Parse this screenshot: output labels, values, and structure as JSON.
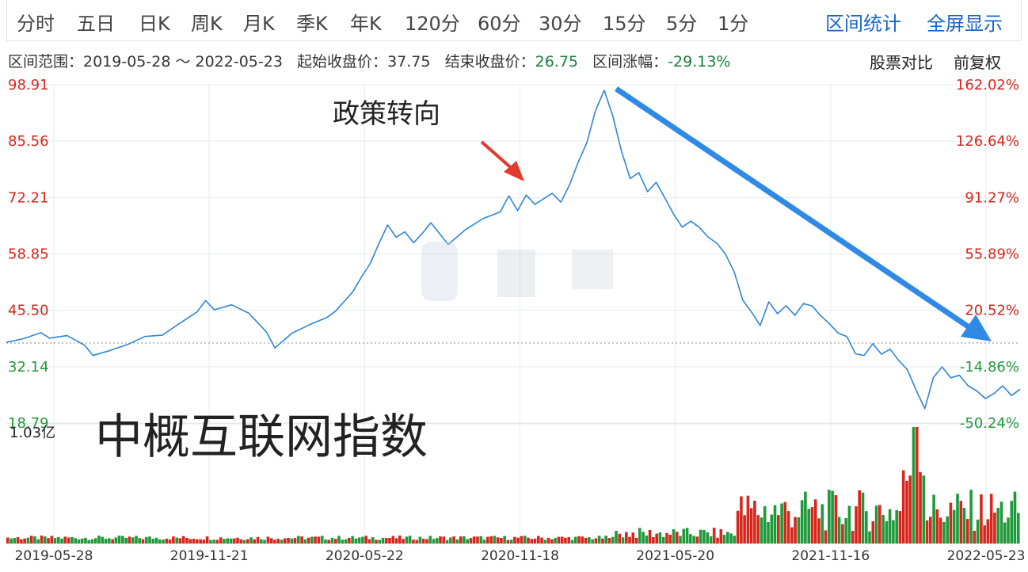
{
  "tabs": {
    "items": [
      "分时",
      "五日",
      "日K",
      "周K",
      "月K",
      "季K",
      "年K",
      "120分",
      "60分",
      "30分",
      "15分",
      "5分",
      "1分"
    ],
    "range_stats": "区间统计",
    "fullscreen": "全屏显示"
  },
  "info": {
    "range_label": "区间范围：2019-05-28 ～ 2022-05-23",
    "start_label": "起始收盘价：",
    "start_value": "37.75",
    "end_label": "结束收盘价：",
    "end_value": "26.75",
    "change_label": "区间涨幅：",
    "change_value": "-29.13%",
    "compare": "股票对比",
    "adjust": "前复权"
  },
  "annotation": "政策转向",
  "watermark_title": "中概互联网指数",
  "volume_label": "1.03亿",
  "colors": {
    "line": "#2f86d6",
    "up": "#d7261b",
    "down": "#1f9a3a",
    "arrow_blue": "#2f8ae6",
    "arrow_red": "#e43a2c"
  },
  "chart_data": {
    "type": "line",
    "y_left_ticks": [
      "98.91",
      "85.56",
      "72.21",
      "58.85",
      "45.50",
      "32.14",
      "18.79"
    ],
    "y_right_ticks": [
      "162.02%",
      "126.64%",
      "91.27%",
      "55.89%",
      "20.52%",
      "-14.86%",
      "-50.24%"
    ],
    "x_ticks": [
      "2019-05-28",
      "2019-11-21",
      "2020-05-22",
      "2020-11-18",
      "2021-05-20",
      "2021-11-16",
      "2022-05-23"
    ],
    "ylim": [
      18.79,
      98.91
    ],
    "baseline": 37.75,
    "series": [
      {
        "points": [
          [
            0,
            37.9
          ],
          [
            2,
            38.8
          ],
          [
            4,
            40.2
          ],
          [
            5,
            38.9
          ],
          [
            7,
            39.5
          ],
          [
            9,
            37.3
          ],
          [
            10,
            34.8
          ],
          [
            12,
            36.0
          ],
          [
            14,
            37.4
          ],
          [
            16,
            39.3
          ],
          [
            18,
            39.6
          ],
          [
            20,
            42.4
          ],
          [
            22,
            45.1
          ],
          [
            23,
            47.8
          ],
          [
            24,
            45.6
          ],
          [
            26,
            46.8
          ],
          [
            28,
            44.8
          ],
          [
            30,
            40.4
          ],
          [
            31,
            36.6
          ],
          [
            33,
            40.1
          ],
          [
            35,
            42.1
          ],
          [
            37,
            43.8
          ],
          [
            38,
            45.3
          ],
          [
            40,
            49.9
          ],
          [
            41,
            53.4
          ],
          [
            42,
            56.6
          ],
          [
            43,
            61.3
          ],
          [
            44,
            65.7
          ],
          [
            45,
            62.8
          ],
          [
            46,
            64.1
          ],
          [
            47,
            61.5
          ],
          [
            48,
            63.7
          ],
          [
            49,
            66.2
          ],
          [
            51,
            61.1
          ],
          [
            53,
            64.6
          ],
          [
            55,
            67.2
          ],
          [
            57,
            68.8
          ],
          [
            58,
            72.6
          ],
          [
            59,
            69.1
          ],
          [
            60,
            72.8
          ],
          [
            61,
            70.6
          ],
          [
            63,
            73.2
          ],
          [
            64,
            71.1
          ],
          [
            65,
            75.2
          ],
          [
            66,
            80.6
          ],
          [
            67,
            85.2
          ],
          [
            68,
            92.8
          ],
          [
            69,
            97.6
          ],
          [
            70,
            91.5
          ],
          [
            71,
            83.1
          ],
          [
            72,
            76.7
          ],
          [
            73,
            78.1
          ],
          [
            74,
            73.6
          ],
          [
            75,
            75.8
          ],
          [
            76,
            72.1
          ],
          [
            77,
            68.3
          ],
          [
            78,
            65.2
          ],
          [
            79,
            66.6
          ],
          [
            80,
            65.1
          ],
          [
            81,
            62.8
          ],
          [
            82,
            61.4
          ],
          [
            83,
            58.8
          ],
          [
            84,
            54.6
          ],
          [
            85,
            47.9
          ],
          [
            86,
            45.1
          ],
          [
            87,
            41.9
          ],
          [
            88,
            47.5
          ],
          [
            89,
            44.7
          ],
          [
            90,
            46.6
          ],
          [
            91,
            44.3
          ],
          [
            92,
            47.1
          ],
          [
            93,
            46.5
          ],
          [
            94,
            44.2
          ],
          [
            95,
            42.3
          ],
          [
            96,
            40.1
          ],
          [
            97,
            39.3
          ],
          [
            98,
            35.2
          ],
          [
            99,
            34.8
          ],
          [
            100,
            37.6
          ],
          [
            101,
            35.1
          ],
          [
            102,
            36.3
          ],
          [
            103,
            33.6
          ],
          [
            104,
            31.4
          ],
          [
            105,
            26.6
          ],
          [
            106,
            22.2
          ],
          [
            107,
            29.6
          ],
          [
            108,
            32.1
          ],
          [
            109,
            29.5
          ],
          [
            110,
            30.1
          ],
          [
            111,
            27.6
          ],
          [
            112,
            26.4
          ],
          [
            113,
            24.6
          ],
          [
            114,
            25.8
          ],
          [
            115,
            27.6
          ],
          [
            116,
            25.3
          ],
          [
            117,
            26.8
          ]
        ]
      }
    ],
    "volume_ylim": [
      0,
      1.03
    ],
    "volume_peak_index": 105
  }
}
